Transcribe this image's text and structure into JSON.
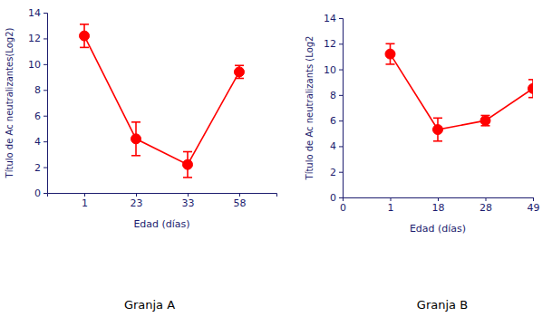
{
  "chart_data": [
    {
      "type": "line",
      "title": "Granja A",
      "x_label": "Edad (días)",
      "y_label": "Título de Ac neutralizantes(Log2)",
      "categories": [
        "1",
        "23",
        "33",
        "58"
      ],
      "values": [
        12.2,
        4.2,
        2.2,
        9.4
      ],
      "error": [
        0.9,
        1.3,
        1.0,
        0.5
      ],
      "color": "#ff0000",
      "marker": "circle",
      "ylim": [
        0,
        14
      ],
      "yticks": [
        0,
        2,
        4,
        6,
        8,
        10,
        12,
        14
      ]
    },
    {
      "type": "line",
      "title": "Granja B",
      "x_label": "Edad (días)",
      "y_label": "Título de Ac neutralizants (Log2",
      "categories": [
        "0",
        "1",
        "18",
        "28",
        "49"
      ],
      "values": [
        null,
        11.2,
        5.3,
        6.0,
        8.5
      ],
      "error": [
        null,
        0.8,
        0.9,
        0.4,
        0.7
      ],
      "color": "#ff0000",
      "marker": "circle",
      "ylim": [
        0,
        14
      ],
      "yticks": [
        0,
        2,
        4,
        6,
        8,
        10,
        12,
        14
      ]
    }
  ]
}
